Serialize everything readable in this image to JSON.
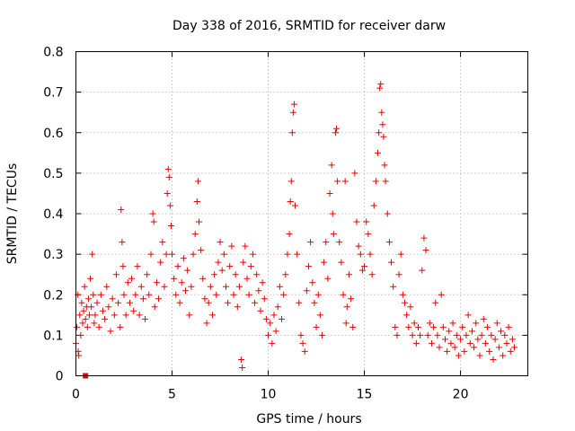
{
  "chart_data": {
    "type": "scatter",
    "title": "Day 338 of 2016, SRMTID for receiver darw",
    "xlabel": "GPS time / hours",
    "ylabel": "SRMTID / TECUs",
    "xlim": [
      0,
      23.5
    ],
    "ylim": [
      0,
      0.8
    ],
    "xticks": [
      0,
      5,
      10,
      15,
      20
    ],
    "xtick_labels": [
      "0",
      "5",
      "10",
      "15",
      "20"
    ],
    "yticks": [
      0,
      0.1,
      0.2,
      0.3,
      0.4,
      0.5,
      0.6,
      0.7,
      0.8
    ],
    "ytick_labels": [
      "0",
      "0.1",
      "0.2",
      "0.3",
      "0.4",
      "0.5",
      "0.6",
      "0.7",
      "0.8"
    ],
    "grid": true,
    "marker": "plus",
    "color": "#ee0000",
    "series": [
      {
        "name": "SRMTID",
        "points": [
          [
            0.0,
            0.08
          ],
          [
            0.05,
            0.12
          ],
          [
            0.1,
            0.2
          ],
          [
            0.12,
            0.06
          ],
          [
            0.15,
            0.05
          ],
          [
            0.2,
            0.15
          ],
          [
            0.25,
            0.1
          ],
          [
            0.3,
            0.18
          ],
          [
            0.35,
            0.13
          ],
          [
            0.4,
            0.16
          ],
          [
            0.45,
            0.22
          ],
          [
            0.5,
            0.14
          ],
          [
            0.55,
            0.17
          ],
          [
            0.6,
            0.12
          ],
          [
            0.65,
            0.19
          ],
          [
            0.7,
            0.15
          ],
          [
            0.75,
            0.24
          ],
          [
            0.8,
            0.17
          ],
          [
            0.85,
            0.3
          ],
          [
            0.9,
            0.2
          ],
          [
            0.95,
            0.13
          ],
          [
            1.0,
            0.15
          ],
          [
            1.1,
            0.18
          ],
          [
            1.2,
            0.12
          ],
          [
            1.3,
            0.2
          ],
          [
            1.4,
            0.16
          ],
          [
            1.5,
            0.14
          ],
          [
            1.6,
            0.22
          ],
          [
            1.7,
            0.17
          ],
          [
            1.8,
            0.11
          ],
          [
            1.9,
            0.19
          ],
          [
            2.0,
            0.15
          ],
          [
            2.1,
            0.25
          ],
          [
            2.2,
            0.18
          ],
          [
            2.3,
            0.12
          ],
          [
            2.35,
            0.41
          ],
          [
            2.4,
            0.33
          ],
          [
            2.45,
            0.27
          ],
          [
            2.5,
            0.2
          ],
          [
            2.6,
            0.15
          ],
          [
            2.7,
            0.23
          ],
          [
            2.8,
            0.18
          ],
          [
            2.9,
            0.24
          ],
          [
            3.0,
            0.16
          ],
          [
            3.1,
            0.2
          ],
          [
            3.2,
            0.27
          ],
          [
            3.3,
            0.15
          ],
          [
            3.4,
            0.22
          ],
          [
            3.5,
            0.19
          ],
          [
            3.6,
            0.14
          ],
          [
            3.7,
            0.25
          ],
          [
            3.8,
            0.2
          ],
          [
            3.9,
            0.3
          ],
          [
            4.0,
            0.4
          ],
          [
            4.05,
            0.38
          ],
          [
            4.1,
            0.17
          ],
          [
            4.2,
            0.23
          ],
          [
            4.3,
            0.19
          ],
          [
            4.4,
            0.28
          ],
          [
            4.5,
            0.33
          ],
          [
            4.6,
            0.22
          ],
          [
            4.7,
            0.3
          ],
          [
            4.75,
            0.45
          ],
          [
            4.8,
            0.51
          ],
          [
            4.85,
            0.49
          ],
          [
            4.9,
            0.42
          ],
          [
            4.95,
            0.37
          ],
          [
            5.0,
            0.3
          ],
          [
            5.1,
            0.24
          ],
          [
            5.2,
            0.2
          ],
          [
            5.3,
            0.27
          ],
          [
            5.4,
            0.18
          ],
          [
            5.5,
            0.23
          ],
          [
            5.6,
            0.29
          ],
          [
            5.7,
            0.21
          ],
          [
            5.8,
            0.26
          ],
          [
            5.9,
            0.15
          ],
          [
            6.0,
            0.22
          ],
          [
            6.1,
            0.3
          ],
          [
            6.2,
            0.35
          ],
          [
            6.3,
            0.43
          ],
          [
            6.35,
            0.48
          ],
          [
            6.4,
            0.38
          ],
          [
            6.5,
            0.31
          ],
          [
            6.6,
            0.24
          ],
          [
            6.7,
            0.19
          ],
          [
            6.8,
            0.13
          ],
          [
            6.9,
            0.18
          ],
          [
            7.0,
            0.22
          ],
          [
            7.1,
            0.15
          ],
          [
            7.2,
            0.25
          ],
          [
            7.3,
            0.2
          ],
          [
            7.4,
            0.28
          ],
          [
            7.5,
            0.33
          ],
          [
            7.6,
            0.26
          ],
          [
            7.7,
            0.3
          ],
          [
            7.8,
            0.22
          ],
          [
            7.9,
            0.18
          ],
          [
            8.0,
            0.27
          ],
          [
            8.1,
            0.32
          ],
          [
            8.2,
            0.2
          ],
          [
            8.3,
            0.25
          ],
          [
            8.4,
            0.17
          ],
          [
            8.5,
            0.22
          ],
          [
            8.6,
            0.04
          ],
          [
            8.65,
            0.02
          ],
          [
            8.7,
            0.28
          ],
          [
            8.8,
            0.32
          ],
          [
            8.9,
            0.24
          ],
          [
            9.0,
            0.2
          ],
          [
            9.1,
            0.27
          ],
          [
            9.2,
            0.3
          ],
          [
            9.3,
            0.18
          ],
          [
            9.4,
            0.25
          ],
          [
            9.5,
            0.21
          ],
          [
            9.6,
            0.16
          ],
          [
            9.7,
            0.23
          ],
          [
            9.8,
            0.19
          ],
          [
            9.9,
            0.14
          ],
          [
            10.0,
            0.1
          ],
          [
            10.1,
            0.13
          ],
          [
            10.2,
            0.08
          ],
          [
            10.3,
            0.15
          ],
          [
            10.4,
            0.11
          ],
          [
            10.5,
            0.17
          ],
          [
            10.6,
            0.22
          ],
          [
            10.7,
            0.14
          ],
          [
            10.8,
            0.2
          ],
          [
            10.9,
            0.25
          ],
          [
            11.0,
            0.3
          ],
          [
            11.1,
            0.35
          ],
          [
            11.15,
            0.43
          ],
          [
            11.2,
            0.48
          ],
          [
            11.25,
            0.6
          ],
          [
            11.3,
            0.65
          ],
          [
            11.35,
            0.67
          ],
          [
            11.4,
            0.42
          ],
          [
            11.5,
            0.3
          ],
          [
            11.6,
            0.18
          ],
          [
            11.7,
            0.1
          ],
          [
            11.8,
            0.08
          ],
          [
            11.9,
            0.06
          ],
          [
            12.0,
            0.21
          ],
          [
            12.1,
            0.27
          ],
          [
            12.2,
            0.33
          ],
          [
            12.3,
            0.23
          ],
          [
            12.4,
            0.18
          ],
          [
            12.5,
            0.12
          ],
          [
            12.6,
            0.2
          ],
          [
            12.7,
            0.15
          ],
          [
            12.8,
            0.1
          ],
          [
            12.9,
            0.28
          ],
          [
            13.0,
            0.33
          ],
          [
            13.1,
            0.24
          ],
          [
            13.2,
            0.45
          ],
          [
            13.3,
            0.52
          ],
          [
            13.35,
            0.4
          ],
          [
            13.4,
            0.35
          ],
          [
            13.5,
            0.6
          ],
          [
            13.55,
            0.61
          ],
          [
            13.6,
            0.48
          ],
          [
            13.7,
            0.33
          ],
          [
            13.8,
            0.28
          ],
          [
            13.9,
            0.2
          ],
          [
            14.0,
            0.48
          ],
          [
            14.05,
            0.13
          ],
          [
            14.1,
            0.17
          ],
          [
            14.2,
            0.25
          ],
          [
            14.3,
            0.19
          ],
          [
            14.4,
            0.12
          ],
          [
            14.5,
            0.5
          ],
          [
            14.6,
            0.38
          ],
          [
            14.7,
            0.32
          ],
          [
            14.8,
            0.3
          ],
          [
            14.9,
            0.26
          ],
          [
            15.0,
            0.27
          ],
          [
            15.1,
            0.38
          ],
          [
            15.2,
            0.35
          ],
          [
            15.3,
            0.3
          ],
          [
            15.4,
            0.25
          ],
          [
            15.5,
            0.42
          ],
          [
            15.6,
            0.48
          ],
          [
            15.7,
            0.55
          ],
          [
            15.75,
            0.6
          ],
          [
            15.8,
            0.71
          ],
          [
            15.85,
            0.72
          ],
          [
            15.9,
            0.65
          ],
          [
            15.95,
            0.62
          ],
          [
            16.0,
            0.59
          ],
          [
            16.05,
            0.52
          ],
          [
            16.1,
            0.48
          ],
          [
            16.2,
            0.4
          ],
          [
            16.3,
            0.33
          ],
          [
            16.4,
            0.28
          ],
          [
            16.5,
            0.22
          ],
          [
            16.6,
            0.12
          ],
          [
            16.7,
            0.1
          ],
          [
            16.8,
            0.25
          ],
          [
            16.9,
            0.3
          ],
          [
            17.0,
            0.2
          ],
          [
            17.1,
            0.18
          ],
          [
            17.2,
            0.15
          ],
          [
            17.3,
            0.12
          ],
          [
            17.4,
            0.17
          ],
          [
            17.5,
            0.1
          ],
          [
            17.6,
            0.13
          ],
          [
            17.7,
            0.08
          ],
          [
            17.8,
            0.12
          ],
          [
            17.9,
            0.1
          ],
          [
            18.0,
            0.26
          ],
          [
            18.1,
            0.34
          ],
          [
            18.2,
            0.31
          ],
          [
            18.3,
            0.1
          ],
          [
            18.4,
            0.13
          ],
          [
            18.5,
            0.08
          ],
          [
            18.6,
            0.12
          ],
          [
            18.7,
            0.18
          ],
          [
            18.8,
            0.1
          ],
          [
            18.9,
            0.07
          ],
          [
            19.0,
            0.2
          ],
          [
            19.1,
            0.12
          ],
          [
            19.2,
            0.09
          ],
          [
            19.3,
            0.06
          ],
          [
            19.4,
            0.11
          ],
          [
            19.5,
            0.08
          ],
          [
            19.6,
            0.13
          ],
          [
            19.7,
            0.07
          ],
          [
            19.8,
            0.1
          ],
          [
            19.9,
            0.05
          ],
          [
            20.0,
            0.09
          ],
          [
            20.1,
            0.12
          ],
          [
            20.2,
            0.06
          ],
          [
            20.3,
            0.1
          ],
          [
            20.4,
            0.15
          ],
          [
            20.5,
            0.08
          ],
          [
            20.6,
            0.11
          ],
          [
            20.7,
            0.07
          ],
          [
            20.8,
            0.13
          ],
          [
            20.9,
            0.09
          ],
          [
            21.0,
            0.05
          ],
          [
            21.1,
            0.1
          ],
          [
            21.2,
            0.14
          ],
          [
            21.3,
            0.08
          ],
          [
            21.4,
            0.12
          ],
          [
            21.5,
            0.06
          ],
          [
            21.6,
            0.1
          ],
          [
            21.7,
            0.04
          ],
          [
            21.8,
            0.09
          ],
          [
            21.9,
            0.13
          ],
          [
            22.0,
            0.07
          ],
          [
            22.1,
            0.11
          ],
          [
            22.2,
            0.05
          ],
          [
            22.3,
            0.1
          ],
          [
            22.4,
            0.08
          ],
          [
            22.5,
            0.12
          ],
          [
            22.6,
            0.06
          ],
          [
            22.7,
            0.09
          ],
          [
            22.8,
            0.07
          ]
        ]
      }
    ],
    "special_points": [
      {
        "name": "zero-marker",
        "x": 0.5,
        "y": 0.0,
        "marker": "square"
      }
    ]
  }
}
